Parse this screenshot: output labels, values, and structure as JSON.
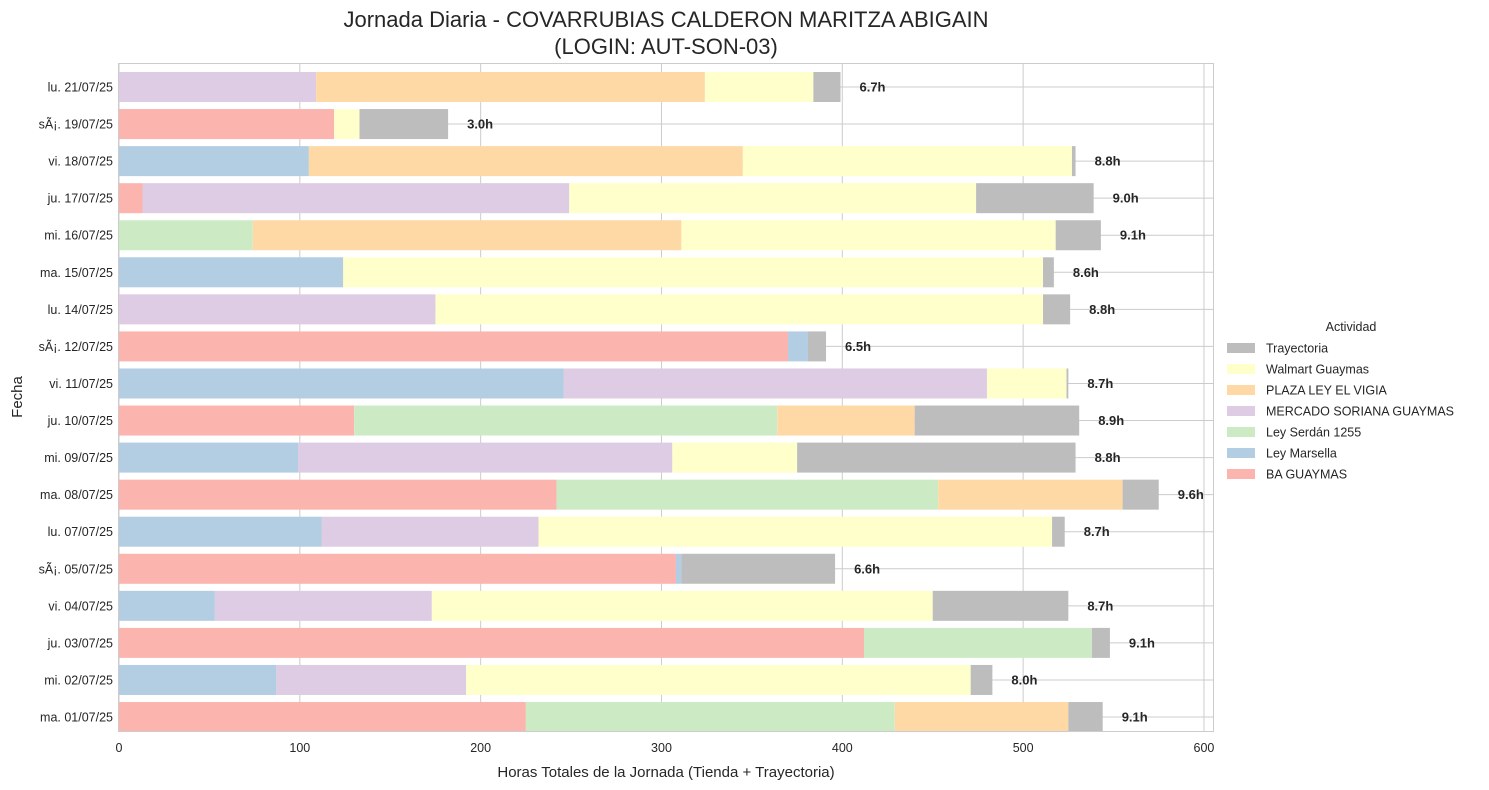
{
  "chart_data": {
    "type": "bar",
    "orientation": "horizontal",
    "stacked": true,
    "title": "Jornada Diaria - COVARRUBIAS CALDERON MARITZA ABIGAIN",
    "subtitle": "(LOGIN: AUT-SON-03)",
    "xlabel": "Horas Totales de la Jornada (Tienda + Trayectoria)",
    "ylabel": "Fecha",
    "xlim": [
      0,
      605
    ],
    "xticks": [
      "0",
      "100",
      "200",
      "300",
      "400",
      "500",
      "600"
    ],
    "grid": true,
    "legend": {
      "title": "Actividad",
      "placement": "right-center"
    },
    "categories": [
      "lu. 21/07/25",
      "sÃ¡. 19/07/25",
      "vi. 18/07/25",
      "ju. 17/07/25",
      "mi. 16/07/25",
      "ma. 15/07/25",
      "lu. 14/07/25",
      "sÃ¡. 12/07/25",
      "vi. 11/07/25",
      "ju. 10/07/25",
      "mi. 09/07/25",
      "ma. 08/07/25",
      "lu. 07/07/25",
      "sÃ¡. 05/07/25",
      "vi. 04/07/25",
      "ju. 03/07/25",
      "mi. 02/07/25",
      "ma. 01/07/25"
    ],
    "totals": [
      "6.7h",
      "3.0h",
      "8.8h",
      "9.0h",
      "9.1h",
      "8.6h",
      "8.8h",
      "6.5h",
      "8.7h",
      "8.9h",
      "8.8h",
      "9.6h",
      "8.7h",
      "6.6h",
      "8.7h",
      "9.1h",
      "8.0h",
      "9.1h"
    ],
    "series": [
      {
        "name": "BA GUAYMAS",
        "color": "#fbb4ae",
        "values": [
          0,
          119,
          0,
          13,
          0,
          0,
          0,
          370,
          0,
          130,
          0,
          242,
          0,
          308,
          0,
          412,
          0,
          225
        ]
      },
      {
        "name": "Ley Marsella",
        "color": "#b3cde3",
        "values": [
          0,
          0,
          105,
          0,
          0,
          124,
          0,
          11,
          246,
          0,
          99,
          0,
          112,
          3,
          53,
          0,
          87,
          0
        ]
      },
      {
        "name": "Ley Serdán 1255",
        "color": "#ccebc5",
        "values": [
          0,
          0,
          0,
          0,
          74,
          0,
          0,
          0,
          0,
          234,
          0,
          211,
          0,
          0,
          0,
          126,
          0,
          204
        ]
      },
      {
        "name": "MERCADO SORIANA GUAYMAS",
        "color": "#decbe4",
        "values": [
          109,
          0,
          0,
          236,
          0,
          0,
          175,
          0,
          234,
          0,
          207,
          0,
          120,
          0,
          120,
          0,
          105,
          0
        ]
      },
      {
        "name": "PLAZA LEY EL VIGIA",
        "color": "#fed9a6",
        "values": [
          215,
          0,
          240,
          0,
          237,
          0,
          0,
          0,
          0,
          76,
          0,
          102,
          0,
          0,
          0,
          0,
          0,
          96
        ]
      },
      {
        "name": "Walmart Guaymas",
        "color": "#ffffcc",
        "values": [
          60,
          14,
          182,
          225,
          207,
          387,
          336,
          0,
          44,
          0,
          69,
          0,
          284,
          0,
          277,
          0,
          279,
          0
        ]
      },
      {
        "name": "Trayectoria",
        "color": "#bdbdbd",
        "values": [
          15,
          49,
          2,
          65,
          25,
          6,
          15,
          10,
          1,
          91,
          154,
          20,
          7,
          85,
          75,
          10,
          12,
          19
        ]
      }
    ],
    "legend_order": [
      "Trayectoria",
      "Walmart Guaymas",
      "PLAZA LEY EL VIGIA",
      "MERCADO SORIANA GUAYMAS",
      "Ley Serdán 1255",
      "Ley Marsella",
      "BA GUAYMAS"
    ]
  }
}
